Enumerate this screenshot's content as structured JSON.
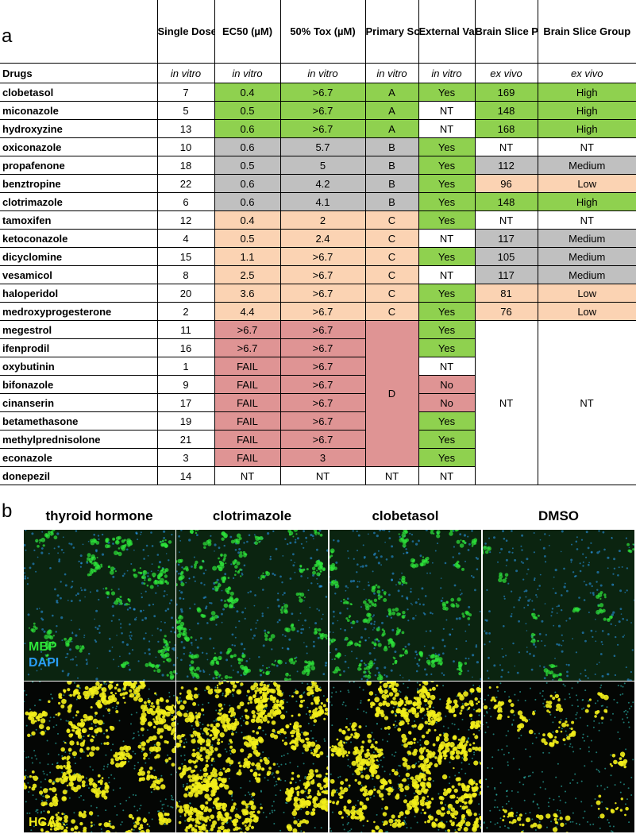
{
  "panel_a_label": "a",
  "panel_b_label": "b",
  "headers": [
    "Single Dose Rank",
    "EC50 (µM)",
    "50% Tox (µM)",
    "Primary Screen Tier",
    "External Validation",
    "Brain Slice Percent MBP of Control",
    "Brain Slice Group"
  ],
  "context_label": "Drugs",
  "contexts": [
    "in vitro",
    "in vitro",
    "in vitro",
    "in vitro",
    "in vitro",
    "ex vivo",
    "ex vivo"
  ],
  "colors": {
    "green": "#8fd14f",
    "gray": "#c0c0c0",
    "peach": "#fbd3b3",
    "red": "#df9494",
    "white": "#ffffff"
  },
  "rows": [
    {
      "drug": "clobetasol",
      "rank": "7",
      "ec50": "0.4",
      "tox": ">6.7",
      "tier": "A",
      "ext": "Yes",
      "pct": "169",
      "group": "High"
    },
    {
      "drug": "miconazole",
      "rank": "5",
      "ec50": "0.5",
      "tox": ">6.7",
      "tier": "A",
      "ext": "NT",
      "pct": "148",
      "group": "High"
    },
    {
      "drug": "hydroxyzine",
      "rank": "13",
      "ec50": "0.6",
      "tox": ">6.7",
      "tier": "A",
      "ext": "NT",
      "pct": "168",
      "group": "High"
    },
    {
      "drug": "oxiconazole",
      "rank": "10",
      "ec50": "0.6",
      "tox": "5.7",
      "tier": "B",
      "ext": "Yes",
      "pct": "NT",
      "group": "NT"
    },
    {
      "drug": "propafenone",
      "rank": "18",
      "ec50": "0.5",
      "tox": "5",
      "tier": "B",
      "ext": "Yes",
      "pct": "112",
      "group": "Medium"
    },
    {
      "drug": "benztropine",
      "rank": "22",
      "ec50": "0.6",
      "tox": "4.2",
      "tier": "B",
      "ext": "Yes",
      "pct": "96",
      "group": "Low"
    },
    {
      "drug": "clotrimazole",
      "rank": "6",
      "ec50": "0.6",
      "tox": "4.1",
      "tier": "B",
      "ext": "Yes",
      "pct": "148",
      "group": "High"
    },
    {
      "drug": "tamoxifen",
      "rank": "12",
      "ec50": "0.4",
      "tox": "2",
      "tier": "C",
      "ext": "Yes",
      "pct": "NT",
      "group": "NT"
    },
    {
      "drug": "ketoconazole",
      "rank": "4",
      "ec50": "0.5",
      "tox": "2.4",
      "tier": "C",
      "ext": "NT",
      "pct": "117",
      "group": "Medium"
    },
    {
      "drug": "dicyclomine",
      "rank": "15",
      "ec50": "1.1",
      "tox": ">6.7",
      "tier": "C",
      "ext": "Yes",
      "pct": "105",
      "group": "Medium"
    },
    {
      "drug": "vesamicol",
      "rank": "8",
      "ec50": "2.5",
      "tox": ">6.7",
      "tier": "C",
      "ext": "NT",
      "pct": "117",
      "group": "Medium"
    },
    {
      "drug": "haloperidol",
      "rank": "20",
      "ec50": "3.6",
      "tox": ">6.7",
      "tier": "C",
      "ext": "Yes",
      "pct": "81",
      "group": "Low"
    },
    {
      "drug": "medroxyprogesterone",
      "rank": "2",
      "ec50": "4.4",
      "tox": ">6.7",
      "tier": "C",
      "ext": "Yes",
      "pct": "76",
      "group": "Low"
    },
    {
      "drug": "megestrol",
      "rank": "11",
      "ec50": ">6.7",
      "tox": ">6.7",
      "ext": "Yes"
    },
    {
      "drug": "ifenprodil",
      "rank": "16",
      "ec50": ">6.7",
      "tox": ">6.7",
      "ext": "Yes"
    },
    {
      "drug": "oxybutinin",
      "rank": "1",
      "ec50": "FAIL",
      "tox": ">6.7",
      "ext": "NT"
    },
    {
      "drug": "bifonazole",
      "rank": "9",
      "ec50": "FAIL",
      "tox": ">6.7",
      "ext": "No"
    },
    {
      "drug": "cinanserin",
      "rank": "17",
      "ec50": "FAIL",
      "tox": ">6.7",
      "ext": "No"
    },
    {
      "drug": "betamethasone",
      "rank": "19",
      "ec50": "FAIL",
      "tox": ">6.7",
      "ext": "Yes"
    },
    {
      "drug": "methylprednisolone",
      "rank": "21",
      "ec50": "FAIL",
      "tox": ">6.7",
      "ext": "Yes"
    },
    {
      "drug": "econazole",
      "rank": "3",
      "ec50": "FAIL",
      "tox": "3",
      "ext": "Yes"
    },
    {
      "drug": "donepezil",
      "rank": "14",
      "ec50": "NT",
      "tox": "NT",
      "tier": "NT",
      "ext": "NT"
    }
  ],
  "merged": {
    "tier_d": "D",
    "pct_nt": "NT",
    "group_nt": "NT"
  },
  "image_columns": [
    "thyroid hormone",
    "clotrimazole",
    "clobetasol",
    "DMSO"
  ],
  "image_labels": {
    "mbp": "MBP",
    "dapi": "DAPI",
    "hca": "HCA"
  },
  "image_colors": {
    "mbp": "#2ee63a",
    "dapi": "#2a9df4",
    "hca": "#f2ee1a"
  }
}
